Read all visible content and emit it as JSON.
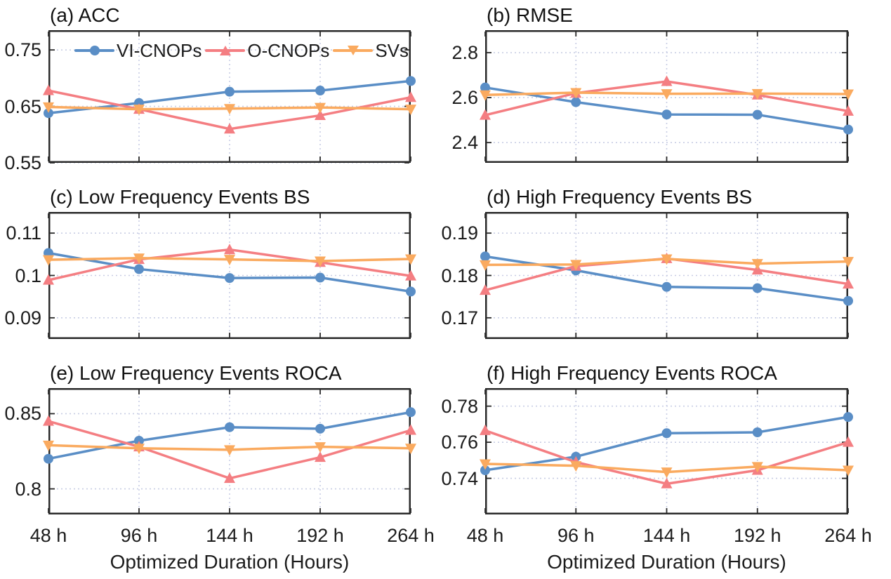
{
  "figure": {
    "xlabel": "Optimized Duration (Hours)",
    "x_tick_labels": [
      "48 h",
      "96 h",
      "144 h",
      "192 h",
      "264 h"
    ],
    "series_styles": [
      {
        "name": "VI-CNOPs",
        "color": "#5A8EC6",
        "marker": "circle"
      },
      {
        "name": "O-CNOPs",
        "color": "#F47E82",
        "marker": "triangle-up"
      },
      {
        "name": "SVs",
        "color": "#FAAA5F",
        "marker": "triangle-down"
      }
    ],
    "grid_color": "#C8CDE4",
    "frame_color": "#2A2A2A",
    "text_color": "#1C1C1C",
    "legend_location": "inside top-left of panel (a)"
  },
  "chart_data": [
    {
      "id": "a",
      "type": "line",
      "title": "(a) ACC",
      "categories": [
        "48 h",
        "96 h",
        "144 h",
        "192 h",
        "264 h"
      ],
      "series": [
        {
          "name": "VI-CNOPs",
          "values": [
            0.638,
            0.656,
            0.676,
            0.678,
            0.695
          ]
        },
        {
          "name": "O-CNOPs",
          "values": [
            0.678,
            0.645,
            0.61,
            0.634,
            0.666
          ]
        },
        {
          "name": "SVs",
          "values": [
            0.649,
            0.645,
            0.646,
            0.648,
            0.645
          ]
        }
      ],
      "yticks": [
        0.55,
        0.65,
        0.75
      ],
      "ytick_labels": [
        "0.55",
        "0.65",
        "0.75"
      ],
      "ylim": [
        0.55,
        0.785
      ],
      "grid": true,
      "legend": true
    },
    {
      "id": "b",
      "type": "line",
      "title": "(b) RMSE",
      "categories": [
        "48 h",
        "96 h",
        "144 h",
        "192 h",
        "264 h"
      ],
      "series": [
        {
          "name": "VI-CNOPs",
          "values": [
            2.645,
            2.58,
            2.525,
            2.524,
            2.458
          ]
        },
        {
          "name": "O-CNOPs",
          "values": [
            2.522,
            2.62,
            2.672,
            2.612,
            2.54
          ]
        },
        {
          "name": "SVs",
          "values": [
            2.612,
            2.622,
            2.617,
            2.618,
            2.616
          ]
        }
      ],
      "yticks": [
        2.4,
        2.6,
        2.8
      ],
      "ytick_labels": [
        "2.4",
        "2.6",
        "2.8"
      ],
      "ylim": [
        2.31,
        2.9
      ],
      "grid": true,
      "legend": false
    },
    {
      "id": "c",
      "type": "line",
      "title": "(c) Low Frequency Events BS",
      "categories": [
        "48 h",
        "96 h",
        "144 h",
        "192 h",
        "264 h"
      ],
      "series": [
        {
          "name": "VI-CNOPs",
          "values": [
            0.1053,
            0.1015,
            0.0994,
            0.0995,
            0.0962
          ]
        },
        {
          "name": "O-CNOPs",
          "values": [
            0.0989,
            0.1038,
            0.1061,
            0.1031,
            0.0999
          ]
        },
        {
          "name": "SVs",
          "values": [
            0.1037,
            0.1041,
            0.1038,
            0.1034,
            0.1039
          ]
        }
      ],
      "yticks": [
        0.09,
        0.1,
        0.11
      ],
      "ytick_labels": [
        "0.09",
        "0.1",
        "0.11"
      ],
      "ylim": [
        0.085,
        0.115
      ],
      "grid": true,
      "legend": false
    },
    {
      "id": "d",
      "type": "line",
      "title": "(d) High Frequency Events BS",
      "categories": [
        "48 h",
        "96 h",
        "144 h",
        "192 h",
        "264 h"
      ],
      "series": [
        {
          "name": "VI-CNOPs",
          "values": [
            0.1845,
            0.1812,
            0.1773,
            0.177,
            0.174
          ]
        },
        {
          "name": "O-CNOPs",
          "values": [
            0.1765,
            0.1822,
            0.184,
            0.1813,
            0.178
          ]
        },
        {
          "name": "SVs",
          "values": [
            0.1825,
            0.1826,
            0.1839,
            0.1828,
            0.1833
          ]
        }
      ],
      "yticks": [
        0.17,
        0.18,
        0.19
      ],
      "ytick_labels": [
        "0.17",
        "0.18",
        "0.19"
      ],
      "ylim": [
        0.165,
        0.195
      ],
      "grid": true,
      "legend": false
    },
    {
      "id": "e",
      "type": "line",
      "title": "(e) Low Frequency Events ROCA",
      "categories": [
        "48 h",
        "96 h",
        "144 h",
        "192 h",
        "264 h"
      ],
      "series": [
        {
          "name": "VI-CNOPs",
          "values": [
            0.82,
            0.832,
            0.841,
            0.84,
            0.851
          ]
        },
        {
          "name": "O-CNOPs",
          "values": [
            0.845,
            0.828,
            0.807,
            0.821,
            0.839
          ]
        },
        {
          "name": "SVs",
          "values": [
            0.829,
            0.827,
            0.826,
            0.828,
            0.827
          ]
        }
      ],
      "yticks": [
        0.8,
        0.85
      ],
      "ytick_labels": [
        "0.8",
        "0.85"
      ],
      "ylim": [
        0.783,
        0.867
      ],
      "grid": true,
      "legend": false
    },
    {
      "id": "f",
      "type": "line",
      "title": "(f) High Frequency Events ROCA",
      "categories": [
        "48 h",
        "96 h",
        "144 h",
        "192 h",
        "264 h"
      ],
      "series": [
        {
          "name": "VI-CNOPs",
          "values": [
            0.7445,
            0.752,
            0.765,
            0.7655,
            0.774
          ]
        },
        {
          "name": "O-CNOPs",
          "values": [
            0.7665,
            0.749,
            0.737,
            0.7445,
            0.76
          ]
        },
        {
          "name": "SVs",
          "values": [
            0.748,
            0.747,
            0.7435,
            0.7465,
            0.7445
          ]
        }
      ],
      "yticks": [
        0.74,
        0.76,
        0.78
      ],
      "ytick_labels": [
        "0.74",
        "0.76",
        "0.78"
      ],
      "ylim": [
        0.72,
        0.79
      ],
      "grid": true,
      "legend": false
    }
  ]
}
